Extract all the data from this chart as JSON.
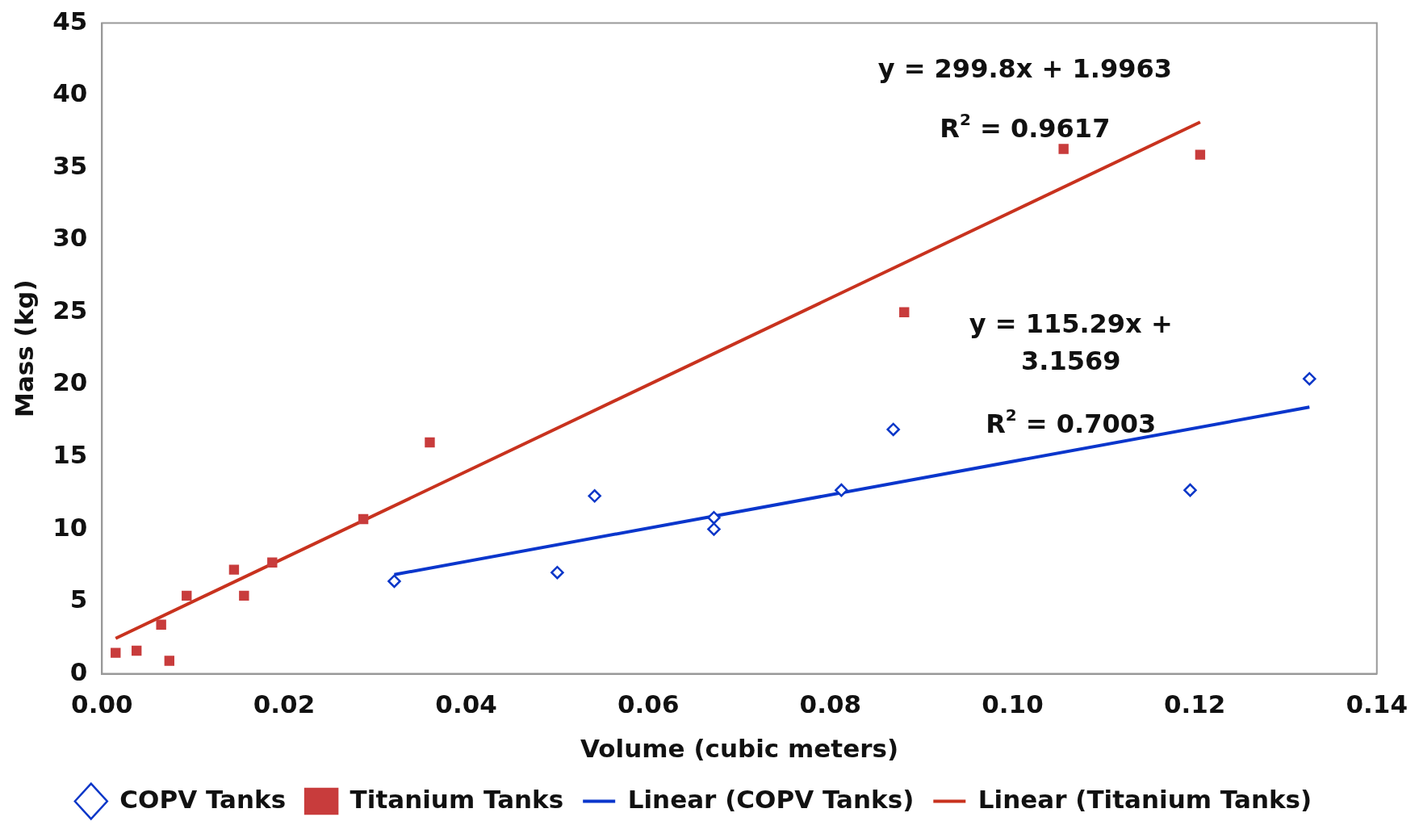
{
  "chart_data": {
    "type": "scatter",
    "xlabel": "Volume (cubic meters)",
    "ylabel": "Mass (kg)",
    "xlim": [
      0,
      0.14
    ],
    "xticks": [
      {
        "value": 0,
        "label": "0.00"
      },
      {
        "value": 0.02,
        "label": "0.02"
      },
      {
        "value": 0.04,
        "label": "0.04"
      },
      {
        "value": 0.06,
        "label": "0.06"
      },
      {
        "value": 0.08,
        "label": "0.08"
      },
      {
        "value": 0.1,
        "label": "0.10"
      },
      {
        "value": 0.12,
        "label": "0.12"
      },
      {
        "value": 0.14,
        "label": "0.14"
      }
    ],
    "ylim": [
      0,
      45
    ],
    "yticks": [
      0,
      5,
      10,
      15,
      20,
      25,
      30,
      35,
      40,
      45
    ],
    "grid": false,
    "legend": "bottom",
    "series": [
      {
        "name": "COPV Tanks",
        "marker": "diamond",
        "color": "#0a36c8",
        "x": [
          0.0321,
          0.05,
          0.0541,
          0.0672,
          0.0672,
          0.0812,
          0.0869,
          0.1195,
          0.1326
        ],
        "values": [
          6.4,
          7.0,
          12.3,
          10.8,
          10.0,
          12.7,
          16.9,
          12.7,
          20.4
        ]
      },
      {
        "name": "Titanium Tanks",
        "marker": "square",
        "color": "#c83c3c",
        "x": [
          0.0015,
          0.0038,
          0.0065,
          0.0074,
          0.0093,
          0.0145,
          0.0156,
          0.0187,
          0.0287,
          0.036,
          0.0881,
          0.1056,
          0.1206
        ],
        "values": [
          1.45,
          1.6,
          3.4,
          0.9,
          5.4,
          7.2,
          5.4,
          7.7,
          10.7,
          16.0,
          25.0,
          36.3,
          35.9
        ]
      },
      {
        "name": "Linear (COPV Tanks)",
        "type": "line",
        "marker": "none",
        "color": "#0a36cc",
        "x": [
          0.0321,
          0.1326
        ],
        "values": [
          6.86,
          18.44
        ]
      },
      {
        "name": "Linear (Titanium Tanks)",
        "type": "line",
        "marker": "none",
        "color": "#c8321e",
        "x": [
          0.0015,
          0.1206
        ],
        "values": [
          2.45,
          38.15
        ]
      }
    ],
    "annotations": [
      "y = 299.8x + 1.9963",
      "R$^{2}$ = 0.9617",
      "y = 115.29x + 3.1569",
      "R$^{2}$ = 0.7003"
    ]
  }
}
